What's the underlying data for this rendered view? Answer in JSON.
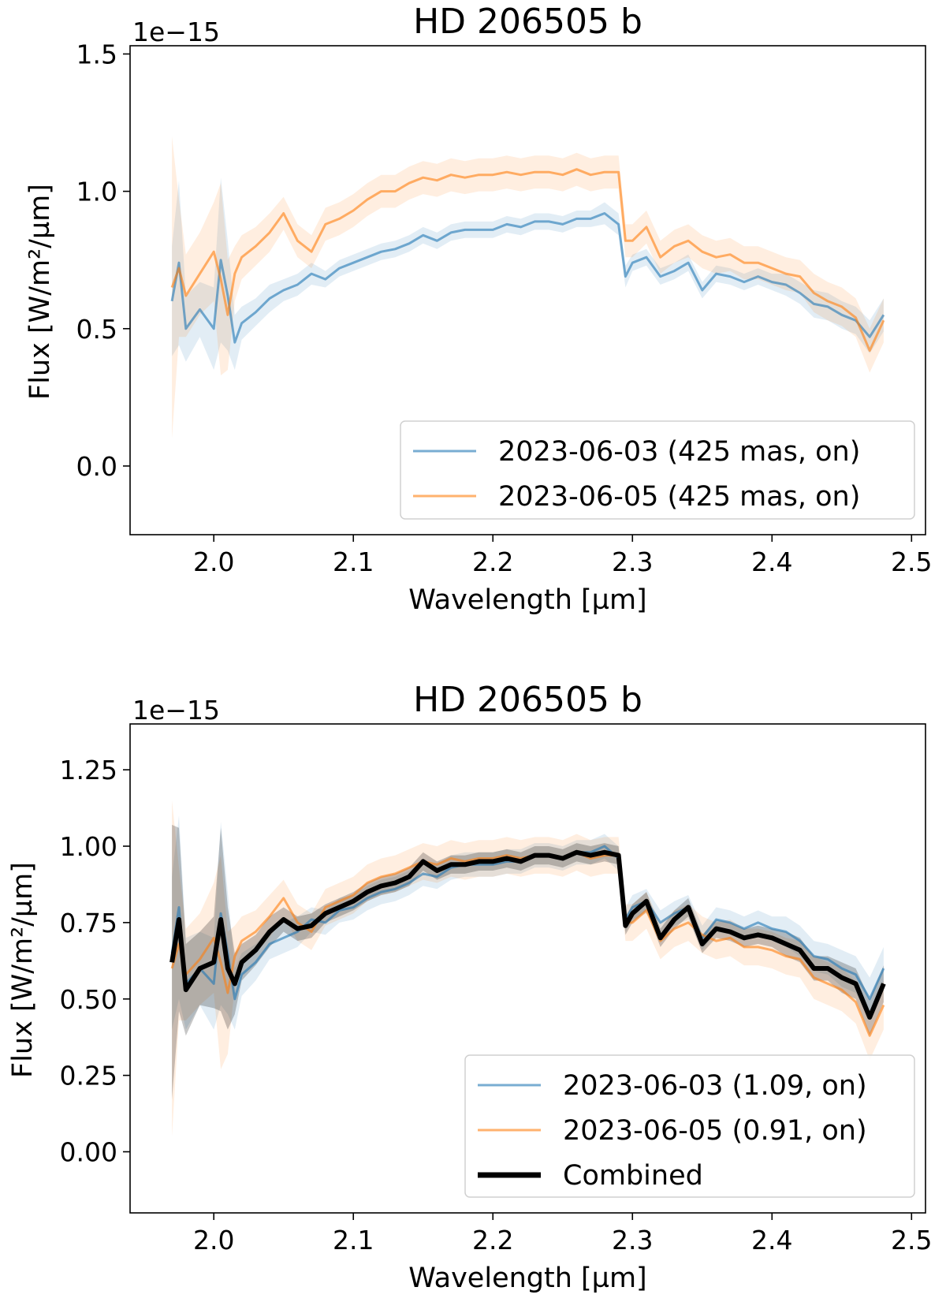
{
  "chart_data": [
    {
      "type": "line",
      "title": "HD 206505 b",
      "xlabel": "Wavelength [µm]",
      "ylabel": "Flux [W/m²/µm]",
      "y_offset_label": "1e−15",
      "xlim": [
        1.94,
        2.51
      ],
      "ylim": [
        -0.25,
        1.53
      ],
      "xticks": [
        2.0,
        2.1,
        2.2,
        2.3,
        2.4,
        2.5
      ],
      "xtick_labels": [
        "2.0",
        "2.1",
        "2.2",
        "2.3",
        "2.4",
        "2.5"
      ],
      "yticks": [
        0.0,
        0.5,
        1.0,
        1.5
      ],
      "ytick_labels": [
        "0.0",
        "0.5",
        "1.0",
        "1.5"
      ],
      "legend_position": "lower right",
      "grid": false,
      "series": [
        {
          "name": "2023-06-03 (425 mas, on)",
          "color": "#1f77b4",
          "x": [
            1.97,
            1.975,
            1.98,
            1.99,
            2.0,
            2.005,
            2.01,
            2.015,
            2.02,
            2.03,
            2.04,
            2.05,
            2.06,
            2.07,
            2.08,
            2.09,
            2.1,
            2.11,
            2.12,
            2.13,
            2.14,
            2.15,
            2.16,
            2.17,
            2.18,
            2.19,
            2.2,
            2.21,
            2.22,
            2.23,
            2.24,
            2.25,
            2.26,
            2.27,
            2.28,
            2.29,
            2.295,
            2.3,
            2.31,
            2.32,
            2.33,
            2.34,
            2.35,
            2.36,
            2.37,
            2.38,
            2.39,
            2.4,
            2.41,
            2.42,
            2.43,
            2.44,
            2.45,
            2.46,
            2.47,
            2.48
          ],
          "y": [
            0.6,
            0.74,
            0.5,
            0.57,
            0.5,
            0.75,
            0.62,
            0.45,
            0.52,
            0.56,
            0.61,
            0.64,
            0.66,
            0.7,
            0.68,
            0.72,
            0.74,
            0.76,
            0.78,
            0.79,
            0.81,
            0.84,
            0.82,
            0.85,
            0.86,
            0.86,
            0.86,
            0.88,
            0.87,
            0.89,
            0.89,
            0.88,
            0.9,
            0.9,
            0.92,
            0.88,
            0.69,
            0.74,
            0.76,
            0.69,
            0.71,
            0.74,
            0.64,
            0.7,
            0.69,
            0.67,
            0.69,
            0.67,
            0.66,
            0.63,
            0.59,
            0.58,
            0.55,
            0.53,
            0.47,
            0.55
          ],
          "band": [
            0.2,
            0.3,
            0.12,
            0.1,
            0.15,
            0.3,
            0.2,
            0.1,
            0.06,
            0.05,
            0.05,
            0.04,
            0.04,
            0.04,
            0.03,
            0.03,
            0.03,
            0.03,
            0.03,
            0.03,
            0.03,
            0.03,
            0.03,
            0.03,
            0.03,
            0.03,
            0.03,
            0.03,
            0.03,
            0.03,
            0.03,
            0.03,
            0.03,
            0.03,
            0.04,
            0.04,
            0.04,
            0.03,
            0.03,
            0.03,
            0.03,
            0.03,
            0.03,
            0.03,
            0.03,
            0.03,
            0.03,
            0.03,
            0.04,
            0.04,
            0.05,
            0.05,
            0.05,
            0.05,
            0.06,
            0.06
          ]
        },
        {
          "name": "2023-06-05 (425 mas, on)",
          "color": "#ff7f0e",
          "x": [
            1.97,
            1.975,
            1.98,
            1.99,
            2.0,
            2.005,
            2.01,
            2.015,
            2.02,
            2.03,
            2.04,
            2.05,
            2.06,
            2.07,
            2.08,
            2.09,
            2.1,
            2.11,
            2.12,
            2.13,
            2.14,
            2.15,
            2.16,
            2.17,
            2.18,
            2.19,
            2.2,
            2.21,
            2.22,
            2.23,
            2.24,
            2.25,
            2.26,
            2.27,
            2.28,
            2.29,
            2.295,
            2.3,
            2.31,
            2.32,
            2.33,
            2.34,
            2.35,
            2.36,
            2.37,
            2.38,
            2.39,
            2.4,
            2.41,
            2.42,
            2.43,
            2.44,
            2.45,
            2.46,
            2.47,
            2.48
          ],
          "y": [
            0.65,
            0.72,
            0.62,
            0.7,
            0.78,
            0.68,
            0.55,
            0.7,
            0.76,
            0.8,
            0.85,
            0.92,
            0.82,
            0.78,
            0.88,
            0.9,
            0.93,
            0.97,
            1.0,
            1.0,
            1.03,
            1.05,
            1.04,
            1.06,
            1.05,
            1.06,
            1.06,
            1.07,
            1.06,
            1.07,
            1.07,
            1.06,
            1.08,
            1.06,
            1.07,
            1.07,
            0.82,
            0.82,
            0.87,
            0.76,
            0.8,
            0.82,
            0.78,
            0.76,
            0.77,
            0.74,
            0.74,
            0.72,
            0.7,
            0.69,
            0.63,
            0.6,
            0.58,
            0.54,
            0.42,
            0.53
          ],
          "band": [
            0.55,
            0.25,
            0.15,
            0.15,
            0.18,
            0.35,
            0.2,
            0.1,
            0.08,
            0.07,
            0.07,
            0.06,
            0.06,
            0.06,
            0.06,
            0.06,
            0.06,
            0.06,
            0.06,
            0.06,
            0.06,
            0.06,
            0.06,
            0.06,
            0.06,
            0.06,
            0.06,
            0.06,
            0.06,
            0.06,
            0.06,
            0.06,
            0.06,
            0.06,
            0.06,
            0.06,
            0.06,
            0.06,
            0.06,
            0.06,
            0.06,
            0.06,
            0.06,
            0.06,
            0.06,
            0.06,
            0.06,
            0.06,
            0.06,
            0.06,
            0.07,
            0.07,
            0.07,
            0.07,
            0.08,
            0.08
          ]
        }
      ]
    },
    {
      "type": "line",
      "title": "HD 206505 b",
      "xlabel": "Wavelength [µm]",
      "ylabel": "Flux [W/m²/µm]",
      "y_offset_label": "1e−15",
      "xlim": [
        1.94,
        2.51
      ],
      "ylim": [
        -0.2,
        1.4
      ],
      "xticks": [
        2.0,
        2.1,
        2.2,
        2.3,
        2.4,
        2.5
      ],
      "xtick_labels": [
        "2.0",
        "2.1",
        "2.2",
        "2.3",
        "2.4",
        "2.5"
      ],
      "yticks": [
        0.0,
        0.25,
        0.5,
        0.75,
        1.0,
        1.25
      ],
      "ytick_labels": [
        "0.00",
        "0.25",
        "0.50",
        "0.75",
        "1.00",
        "1.25"
      ],
      "legend_position": "lower right",
      "grid": false,
      "series": [
        {
          "name": "2023-06-03 (1.09, on)",
          "color": "#1f77b4",
          "x": [
            1.97,
            1.975,
            1.98,
            1.99,
            2.0,
            2.005,
            2.01,
            2.015,
            2.02,
            2.03,
            2.04,
            2.05,
            2.06,
            2.07,
            2.08,
            2.09,
            2.1,
            2.11,
            2.12,
            2.13,
            2.14,
            2.15,
            2.16,
            2.17,
            2.18,
            2.19,
            2.2,
            2.21,
            2.22,
            2.23,
            2.24,
            2.25,
            2.26,
            2.27,
            2.28,
            2.29,
            2.295,
            2.3,
            2.31,
            2.32,
            2.33,
            2.34,
            2.35,
            2.36,
            2.37,
            2.38,
            2.39,
            2.4,
            2.41,
            2.42,
            2.43,
            2.44,
            2.45,
            2.46,
            2.47,
            2.48
          ],
          "y": [
            0.65,
            0.8,
            0.55,
            0.6,
            0.55,
            0.78,
            0.65,
            0.5,
            0.58,
            0.62,
            0.68,
            0.7,
            0.72,
            0.76,
            0.75,
            0.79,
            0.8,
            0.83,
            0.85,
            0.86,
            0.88,
            0.91,
            0.9,
            0.93,
            0.94,
            0.94,
            0.94,
            0.95,
            0.95,
            0.97,
            0.97,
            0.96,
            0.98,
            0.98,
            1.0,
            0.96,
            0.76,
            0.8,
            0.82,
            0.75,
            0.78,
            0.8,
            0.7,
            0.76,
            0.75,
            0.73,
            0.75,
            0.73,
            0.72,
            0.69,
            0.64,
            0.63,
            0.6,
            0.58,
            0.5,
            0.6
          ],
          "band": [
            0.25,
            0.3,
            0.15,
            0.12,
            0.15,
            0.3,
            0.2,
            0.1,
            0.07,
            0.06,
            0.05,
            0.05,
            0.05,
            0.04,
            0.04,
            0.04,
            0.04,
            0.04,
            0.04,
            0.04,
            0.04,
            0.04,
            0.04,
            0.04,
            0.04,
            0.04,
            0.04,
            0.04,
            0.04,
            0.04,
            0.04,
            0.04,
            0.04,
            0.04,
            0.04,
            0.04,
            0.04,
            0.04,
            0.04,
            0.04,
            0.04,
            0.04,
            0.04,
            0.04,
            0.04,
            0.04,
            0.04,
            0.04,
            0.05,
            0.05,
            0.05,
            0.05,
            0.06,
            0.06,
            0.07,
            0.07
          ]
        },
        {
          "name": "2023-06-05 (0.91, on)",
          "color": "#ff7f0e",
          "x": [
            1.97,
            1.975,
            1.98,
            1.99,
            2.0,
            2.005,
            2.01,
            2.015,
            2.02,
            2.03,
            2.04,
            2.05,
            2.06,
            2.07,
            2.08,
            2.09,
            2.1,
            2.11,
            2.12,
            2.13,
            2.14,
            2.15,
            2.16,
            2.17,
            2.18,
            2.19,
            2.2,
            2.21,
            2.22,
            2.23,
            2.24,
            2.25,
            2.26,
            2.27,
            2.28,
            2.29,
            2.295,
            2.3,
            2.31,
            2.32,
            2.33,
            2.34,
            2.35,
            2.36,
            2.37,
            2.38,
            2.39,
            2.4,
            2.41,
            2.42,
            2.43,
            2.44,
            2.45,
            2.46,
            2.47,
            2.48
          ],
          "y": [
            0.6,
            0.68,
            0.58,
            0.63,
            0.7,
            0.62,
            0.52,
            0.64,
            0.69,
            0.72,
            0.77,
            0.83,
            0.75,
            0.72,
            0.8,
            0.82,
            0.84,
            0.88,
            0.9,
            0.91,
            0.93,
            0.95,
            0.94,
            0.96,
            0.95,
            0.96,
            0.96,
            0.97,
            0.96,
            0.97,
            0.97,
            0.96,
            0.98,
            0.96,
            0.97,
            0.97,
            0.75,
            0.75,
            0.79,
            0.69,
            0.73,
            0.75,
            0.71,
            0.69,
            0.7,
            0.67,
            0.67,
            0.66,
            0.64,
            0.63,
            0.57,
            0.55,
            0.53,
            0.49,
            0.38,
            0.48
          ],
          "band": [
            0.55,
            0.25,
            0.15,
            0.15,
            0.18,
            0.35,
            0.2,
            0.1,
            0.08,
            0.07,
            0.07,
            0.06,
            0.06,
            0.06,
            0.06,
            0.06,
            0.06,
            0.06,
            0.06,
            0.06,
            0.06,
            0.06,
            0.06,
            0.06,
            0.06,
            0.06,
            0.06,
            0.06,
            0.06,
            0.06,
            0.06,
            0.06,
            0.06,
            0.06,
            0.06,
            0.06,
            0.06,
            0.06,
            0.06,
            0.06,
            0.06,
            0.06,
            0.06,
            0.06,
            0.06,
            0.06,
            0.06,
            0.06,
            0.06,
            0.06,
            0.07,
            0.07,
            0.07,
            0.07,
            0.08,
            0.08
          ]
        },
        {
          "name": "Combined",
          "color": "#000000",
          "x": [
            1.97,
            1.975,
            1.98,
            1.99,
            2.0,
            2.005,
            2.01,
            2.015,
            2.02,
            2.03,
            2.04,
            2.05,
            2.06,
            2.07,
            2.08,
            2.09,
            2.1,
            2.11,
            2.12,
            2.13,
            2.14,
            2.15,
            2.16,
            2.17,
            2.18,
            2.19,
            2.2,
            2.21,
            2.22,
            2.23,
            2.24,
            2.25,
            2.26,
            2.27,
            2.28,
            2.29,
            2.295,
            2.3,
            2.31,
            2.32,
            2.33,
            2.34,
            2.35,
            2.36,
            2.37,
            2.38,
            2.39,
            2.4,
            2.41,
            2.42,
            2.43,
            2.44,
            2.45,
            2.46,
            2.47,
            2.48
          ],
          "y": [
            0.62,
            0.76,
            0.53,
            0.6,
            0.62,
            0.76,
            0.6,
            0.55,
            0.62,
            0.66,
            0.72,
            0.76,
            0.73,
            0.74,
            0.78,
            0.8,
            0.82,
            0.85,
            0.87,
            0.88,
            0.9,
            0.95,
            0.92,
            0.94,
            0.94,
            0.95,
            0.95,
            0.96,
            0.95,
            0.97,
            0.97,
            0.96,
            0.98,
            0.97,
            0.98,
            0.97,
            0.74,
            0.78,
            0.82,
            0.7,
            0.76,
            0.8,
            0.68,
            0.73,
            0.72,
            0.7,
            0.71,
            0.7,
            0.68,
            0.66,
            0.6,
            0.6,
            0.57,
            0.55,
            0.44,
            0.55
          ],
          "band": [
            0.45,
            0.3,
            0.15,
            0.12,
            0.15,
            0.3,
            0.2,
            0.1,
            0.06,
            0.05,
            0.05,
            0.04,
            0.04,
            0.04,
            0.03,
            0.03,
            0.03,
            0.03,
            0.03,
            0.03,
            0.03,
            0.03,
            0.03,
            0.03,
            0.03,
            0.03,
            0.03,
            0.03,
            0.03,
            0.03,
            0.03,
            0.03,
            0.03,
            0.03,
            0.03,
            0.03,
            0.03,
            0.03,
            0.03,
            0.03,
            0.03,
            0.03,
            0.03,
            0.03,
            0.03,
            0.03,
            0.03,
            0.03,
            0.04,
            0.04,
            0.04,
            0.04,
            0.05,
            0.05,
            0.06,
            0.06
          ]
        }
      ]
    }
  ]
}
